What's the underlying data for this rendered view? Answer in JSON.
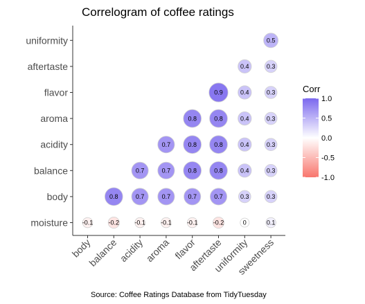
{
  "chart_data": {
    "type": "heatmap",
    "style": "circle correlogram (lower triangle)",
    "title": "Correlogram of coffee ratings",
    "caption": "Source: Coffee Ratings Database from TidyTuesday",
    "x_categories": [
      "body",
      "balance",
      "acidity",
      "aroma",
      "flavor",
      "aftertaste",
      "uniformity",
      "sweetness"
    ],
    "y_categories": [
      "moisture",
      "body",
      "balance",
      "acidity",
      "aroma",
      "flavor",
      "aftertaste",
      "uniformity"
    ],
    "cells": [
      {
        "x": "body",
        "y": "moisture",
        "value": -0.1
      },
      {
        "x": "balance",
        "y": "moisture",
        "value": -0.2
      },
      {
        "x": "acidity",
        "y": "moisture",
        "value": -0.1
      },
      {
        "x": "aroma",
        "y": "moisture",
        "value": -0.1
      },
      {
        "x": "flavor",
        "y": "moisture",
        "value": -0.1
      },
      {
        "x": "aftertaste",
        "y": "moisture",
        "value": -0.2
      },
      {
        "x": "uniformity",
        "y": "moisture",
        "value": 0
      },
      {
        "x": "sweetness",
        "y": "moisture",
        "value": 0.1
      },
      {
        "x": "balance",
        "y": "body",
        "value": 0.8
      },
      {
        "x": "acidity",
        "y": "body",
        "value": 0.7
      },
      {
        "x": "aroma",
        "y": "body",
        "value": 0.7
      },
      {
        "x": "flavor",
        "y": "body",
        "value": 0.7
      },
      {
        "x": "aftertaste",
        "y": "body",
        "value": 0.7
      },
      {
        "x": "uniformity",
        "y": "body",
        "value": 0.3
      },
      {
        "x": "sweetness",
        "y": "body",
        "value": 0.3
      },
      {
        "x": "acidity",
        "y": "balance",
        "value": 0.7
      },
      {
        "x": "aroma",
        "y": "balance",
        "value": 0.7
      },
      {
        "x": "flavor",
        "y": "balance",
        "value": 0.8
      },
      {
        "x": "aftertaste",
        "y": "balance",
        "value": 0.8
      },
      {
        "x": "uniformity",
        "y": "balance",
        "value": 0.4
      },
      {
        "x": "sweetness",
        "y": "balance",
        "value": 0.3
      },
      {
        "x": "aroma",
        "y": "acidity",
        "value": 0.7
      },
      {
        "x": "flavor",
        "y": "acidity",
        "value": 0.8
      },
      {
        "x": "aftertaste",
        "y": "acidity",
        "value": 0.8
      },
      {
        "x": "uniformity",
        "y": "acidity",
        "value": 0.4
      },
      {
        "x": "sweetness",
        "y": "acidity",
        "value": 0.3
      },
      {
        "x": "flavor",
        "y": "aroma",
        "value": 0.8
      },
      {
        "x": "aftertaste",
        "y": "aroma",
        "value": 0.8
      },
      {
        "x": "uniformity",
        "y": "aroma",
        "value": 0.4
      },
      {
        "x": "sweetness",
        "y": "aroma",
        "value": 0.3
      },
      {
        "x": "aftertaste",
        "y": "flavor",
        "value": 0.9
      },
      {
        "x": "uniformity",
        "y": "flavor",
        "value": 0.4
      },
      {
        "x": "sweetness",
        "y": "flavor",
        "value": 0.3
      },
      {
        "x": "uniformity",
        "y": "aftertaste",
        "value": 0.4
      },
      {
        "x": "sweetness",
        "y": "aftertaste",
        "value": 0.3
      },
      {
        "x": "sweetness",
        "y": "uniformity",
        "value": 0.5
      }
    ],
    "legend": {
      "title": "Corr",
      "position": "right",
      "ticks": [
        "1.0",
        "0.5",
        "0.0",
        "-0.5",
        "-1.0"
      ],
      "limits": [
        -1,
        1
      ]
    },
    "colors": {
      "high": "#7b68ee",
      "mid": "#ffffff",
      "low": "#f8766d",
      "circle_outline": "#d0d0d0",
      "axis": "#333333",
      "tick_text": "#4d4d4d"
    },
    "grid": false
  }
}
